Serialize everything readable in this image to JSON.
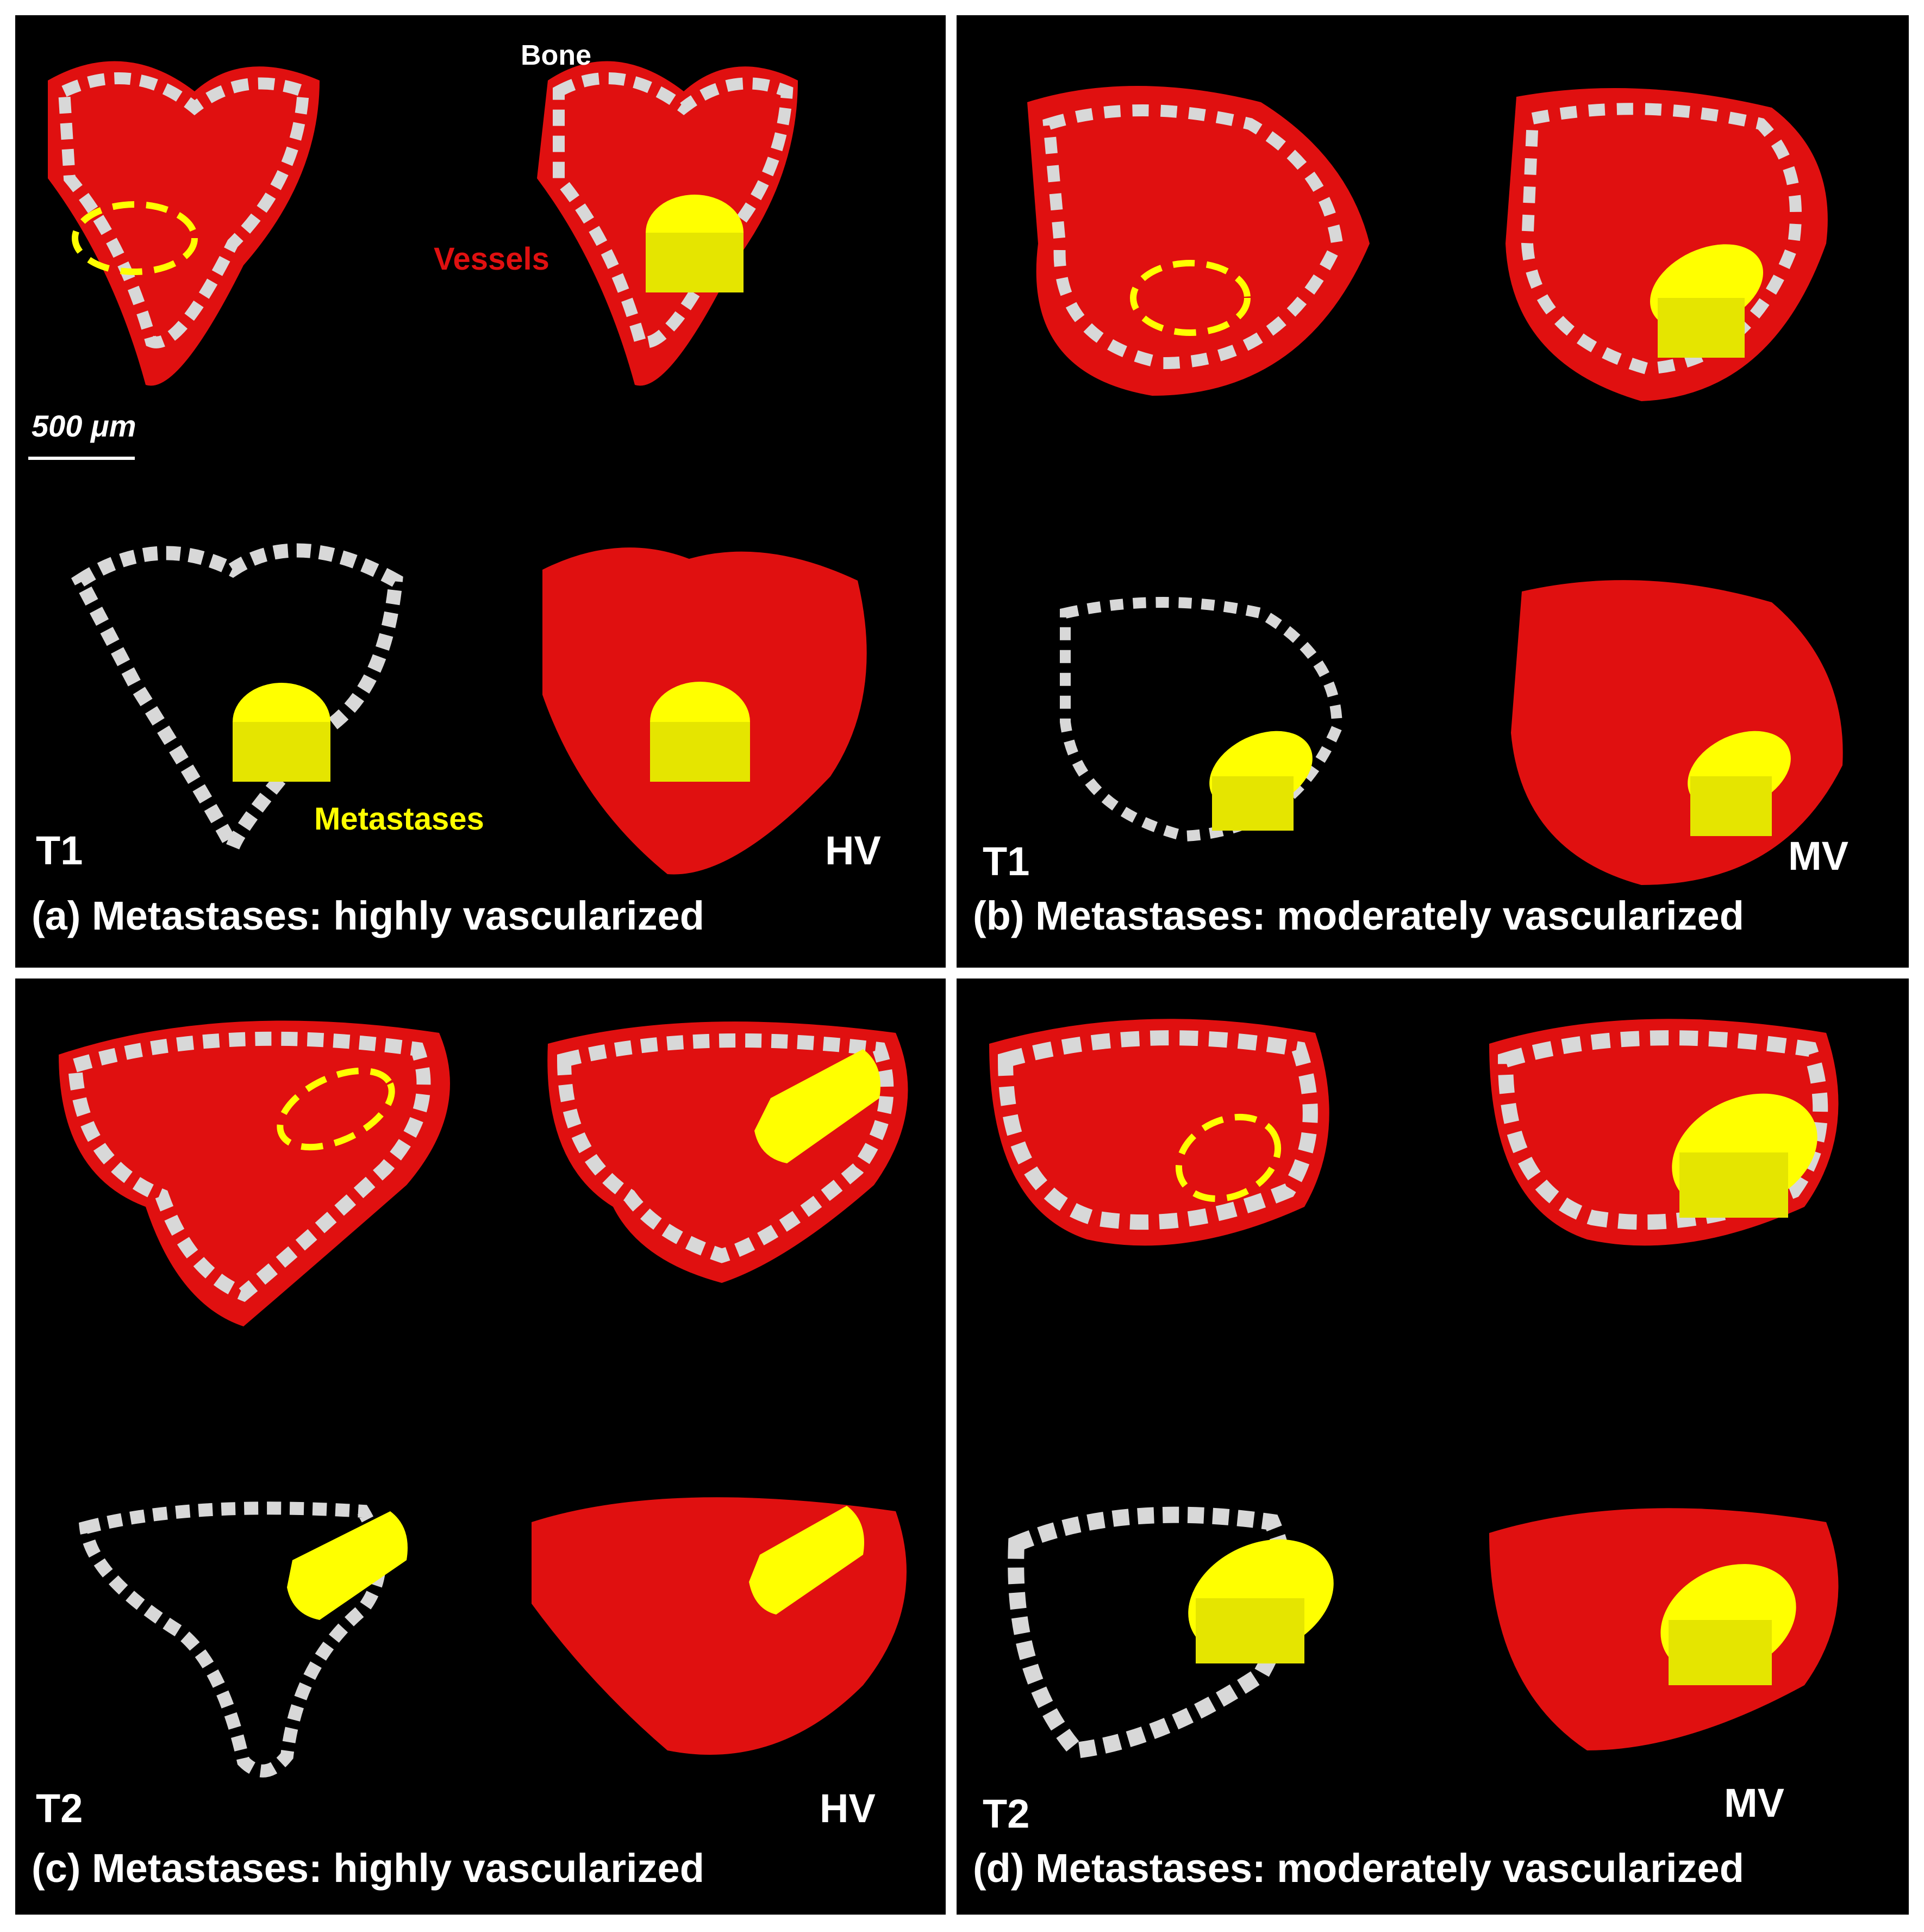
{
  "panels": {
    "a": {
      "caption": "(a) Metastases: highly vascularized",
      "time_label": "T1",
      "type_label": "HV",
      "annotations": {
        "bone": "Bone",
        "vessels": "Vessels",
        "metastases": "Metastases"
      },
      "scale_bar": "500 μm"
    },
    "b": {
      "caption": "(b) Metastases: moderately vascularized",
      "time_label": "T1",
      "type_label": "MV"
    },
    "c": {
      "caption": "(c) Metastases: highly vascularized",
      "time_label": "T2",
      "type_label": "HV"
    },
    "d": {
      "caption": "(d) Metastases: moderately vascularized",
      "time_label": "T2",
      "type_label": "MV"
    }
  },
  "colors": {
    "background": "#000000",
    "bone": "#d8d8d8",
    "vessels": "#e01010",
    "metastases": "#ffff00",
    "divider": "#ffffff"
  }
}
